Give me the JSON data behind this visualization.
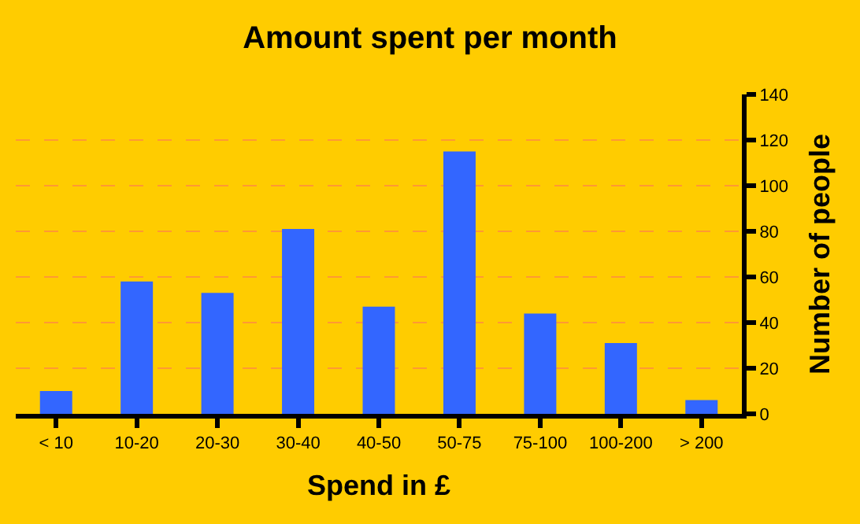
{
  "chart_data": {
    "type": "bar",
    "title": "Amount spent per month",
    "xlabel": "Spend in £",
    "ylabel": "Number of people",
    "categories": [
      "< 10",
      "10-20",
      "20-30",
      "30-40",
      "40-50",
      "50-75",
      "75-100",
      "100-200",
      "> 200"
    ],
    "values": [
      10,
      58,
      53,
      81,
      47,
      115,
      44,
      31,
      6
    ],
    "color": "#3366ff",
    "ylim": [
      0,
      140
    ],
    "yticks": [
      0,
      20,
      40,
      60,
      80,
      100,
      120,
      140
    ],
    "grid": "y"
  }
}
